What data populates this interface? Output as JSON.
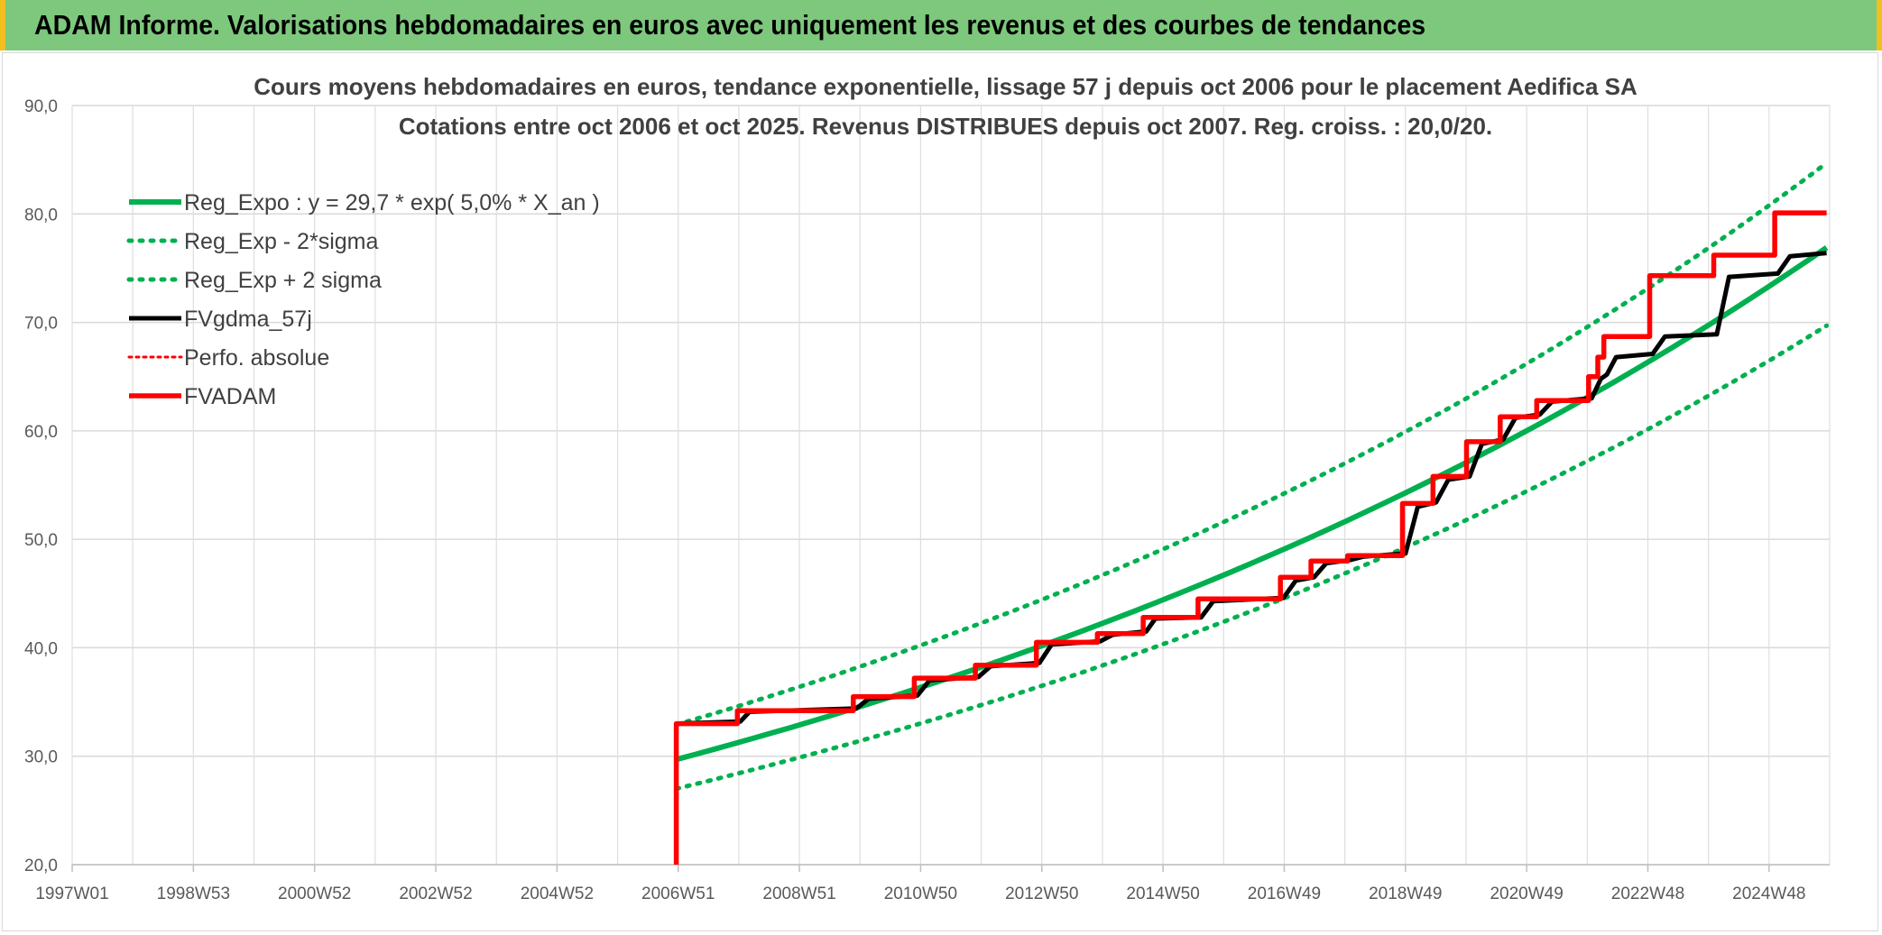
{
  "header": {
    "title": "ADAM Informe. Valorisations hebdomadaires en euros avec uniquement les revenus et des courbes de tendances"
  },
  "colors": {
    "header_bg": "#7dc87d",
    "header_edge": "#f0c020",
    "trend": "#00b050",
    "smooth": "#000000",
    "fvadam": "#ff0000"
  },
  "chart_data": {
    "type": "line",
    "title": "Cours moyens hebdomadaires en euros, tendance exponentielle, lissage 57 j depuis oct 2006 pour le placement Aedifica SA",
    "subtitle": "Cotations entre oct 2006 et oct 2025. Revenus DISTRIBUES depuis oct 2007. Reg. croiss. : 20,0/20.",
    "x_tick_labels": [
      "1997W01",
      "1998W53",
      "2000W52",
      "2002W52",
      "2004W52",
      "2006W51",
      "2008W51",
      "2010W50",
      "2012W50",
      "2014W50",
      "2016W49",
      "2018W49",
      "2020W49",
      "2022W48",
      "2024W48"
    ],
    "x_range": [
      1997.0,
      2025.8
    ],
    "y_tick_labels": [
      "20,0",
      "30,0",
      "40,0",
      "50,0",
      "60,0",
      "70,0",
      "80,0",
      "90,0"
    ],
    "ylim": [
      20,
      90
    ],
    "y_tick_step": 10,
    "grid": true,
    "legend_position": "top-left",
    "series": [
      {
        "name": "Reg_Expo : y = 29,7 * exp( 5,0% *  X_an )",
        "style": "solid-green-thick",
        "x": [
          2006.9,
          2010,
          2014,
          2018,
          2022,
          2025.75
        ],
        "values": [
          29.7,
          34.6,
          42.3,
          51.6,
          63.0,
          76.9
        ]
      },
      {
        "name": "Reg_Exp - 2*sigma",
        "style": "dotted-green",
        "x": [
          2006.9,
          2010,
          2014,
          2018,
          2022,
          2025.75
        ],
        "values": [
          27.0,
          31.4,
          38.4,
          46.8,
          57.2,
          69.7
        ]
      },
      {
        "name": "Reg_Exp + 2 sigma",
        "style": "dotted-green",
        "x": [
          2006.9,
          2010,
          2014,
          2018,
          2022,
          2025.75
        ],
        "values": [
          32.9,
          38.2,
          46.7,
          57.0,
          69.6,
          84.7
        ]
      },
      {
        "name": "FVgdma_57j",
        "style": "solid-black",
        "x": [
          2006.9,
          2007.95,
          2008.1,
          2009.85,
          2010.05,
          2010.85,
          2011.05,
          2011.85,
          2012.05,
          2012.85,
          2013.05,
          2013.85,
          2014.05,
          2014.6,
          2014.75,
          2015.5,
          2015.7,
          2016.85,
          2017.05,
          2017.35,
          2017.55,
          2017.95,
          2018.15,
          2018.85,
          2019.05,
          2019.35,
          2019.55,
          2019.9,
          2020.1,
          2020.45,
          2020.65,
          2021.05,
          2021.25,
          2021.9,
          2022.05,
          2022.15,
          2022.3,
          2022.9,
          2023.1,
          2023.95,
          2024.15,
          2024.95,
          2025.15,
          2025.75
        ],
        "values": [
          33.0,
          33.2,
          34.1,
          34.4,
          35.3,
          35.6,
          37.0,
          37.3,
          38.3,
          38.6,
          40.3,
          40.6,
          41.2,
          41.5,
          42.7,
          42.8,
          44.3,
          44.6,
          46.2,
          46.5,
          47.8,
          48.1,
          48.4,
          48.7,
          53.0,
          53.4,
          55.5,
          55.8,
          58.8,
          59.2,
          61.2,
          61.5,
          62.7,
          63.0,
          64.8,
          65.2,
          66.8,
          67.1,
          68.7,
          68.9,
          74.2,
          74.5,
          76.1,
          76.4
        ]
      },
      {
        "name": "Perfo. absolue",
        "style": "dotted-red",
        "x": [],
        "values": []
      },
      {
        "name": "FVADAM",
        "style": "solid-red-thick",
        "x": [
          2006.9,
          2006.9,
          2007.9,
          2007.9,
          2009.8,
          2009.8,
          2010.8,
          2010.8,
          2011.8,
          2011.8,
          2012.8,
          2012.8,
          2013.8,
          2013.8,
          2014.55,
          2014.55,
          2015.45,
          2015.45,
          2016.8,
          2016.8,
          2017.3,
          2017.3,
          2017.9,
          2017.9,
          2018.8,
          2018.8,
          2019.3,
          2019.3,
          2019.85,
          2019.85,
          2020.4,
          2020.4,
          2021.0,
          2021.0,
          2021.85,
          2021.85,
          2022.0,
          2022.0,
          2022.1,
          2022.1,
          2022.85,
          2022.85,
          2023.9,
          2023.9,
          2024.9,
          2024.9,
          2025.75
        ],
        "values": [
          20.0,
          33.0,
          33.0,
          34.2,
          34.2,
          35.5,
          35.5,
          37.2,
          37.2,
          38.4,
          38.4,
          40.5,
          40.5,
          41.3,
          41.3,
          42.8,
          42.8,
          44.5,
          44.5,
          46.5,
          46.5,
          48.0,
          48.0,
          48.5,
          48.5,
          53.3,
          53.3,
          55.8,
          55.8,
          59.0,
          59.0,
          61.3,
          61.3,
          62.8,
          62.8,
          65.0,
          65.0,
          66.8,
          66.8,
          68.7,
          68.7,
          74.3,
          74.3,
          76.2,
          76.2,
          80.1,
          80.1
        ]
      }
    ]
  }
}
